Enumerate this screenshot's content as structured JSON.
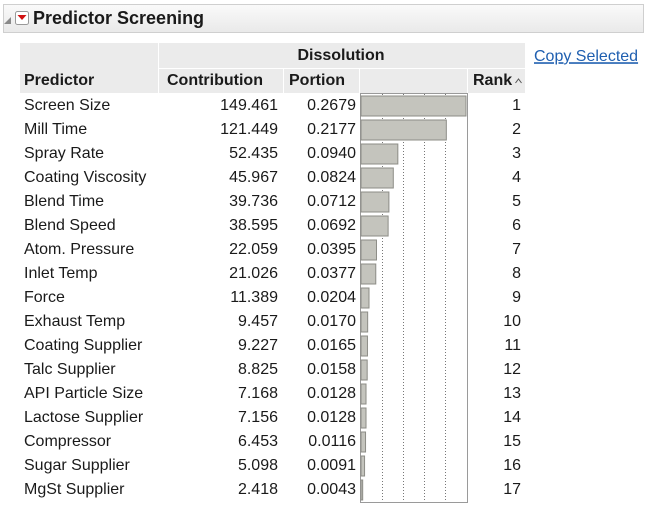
{
  "header": {
    "title": "Predictor Screening"
  },
  "copy_selected": "Copy Selected",
  "table": {
    "group_header": "Dissolution",
    "columns": [
      "Predictor",
      "Contribution",
      "Portion",
      "Rank"
    ],
    "rows": [
      [
        "Screen Size",
        "149.461",
        "0.2679",
        "1"
      ],
      [
        "Mill Time",
        "121.449",
        "0.2177",
        "2"
      ],
      [
        "Spray Rate",
        "52.435",
        "0.0940",
        "3"
      ],
      [
        "Coating Viscosity",
        "45.967",
        "0.0824",
        "4"
      ],
      [
        "Blend Time",
        "39.736",
        "0.0712",
        "5"
      ],
      [
        "Blend Speed",
        "38.595",
        "0.0692",
        "6"
      ],
      [
        "Atom. Pressure",
        "22.059",
        "0.0395",
        "7"
      ],
      [
        "Inlet Temp",
        "21.026",
        "0.0377",
        "8"
      ],
      [
        "Force",
        "11.389",
        "0.0204",
        "9"
      ],
      [
        "Exhaust Temp",
        "9.457",
        "0.0170",
        "10"
      ],
      [
        "Coating Supplier",
        "9.227",
        "0.0165",
        "11"
      ],
      [
        "Talc Supplier",
        "8.825",
        "0.0158",
        "12"
      ],
      [
        "API Particle Size",
        "7.168",
        "0.0128",
        "13"
      ],
      [
        "Lactose Supplier",
        "7.156",
        "0.0128",
        "14"
      ],
      [
        "Compressor",
        "6.453",
        "0.0116",
        "15"
      ],
      [
        "Sugar Supplier",
        "5.098",
        "0.0091",
        "16"
      ],
      [
        "MgSt Supplier",
        "2.418",
        "0.0043",
        "17"
      ]
    ]
  }
}
